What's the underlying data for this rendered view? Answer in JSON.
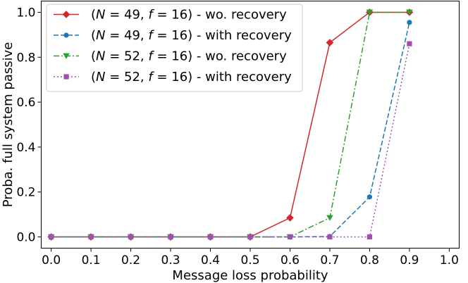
{
  "chart_data": {
    "type": "line",
    "xlabel": "Message loss probability",
    "ylabel": "Proba. full system passive",
    "xlim": [
      -0.025,
      1.025
    ],
    "ylim": [
      -0.05,
      1.05
    ],
    "xticks": [
      0.0,
      0.1,
      0.2,
      0.3,
      0.4,
      0.5,
      0.6,
      0.7,
      0.8,
      0.9,
      1.0
    ],
    "xtick_labels": [
      "0.0",
      "0.1",
      "0.2",
      "0.3",
      "0.4",
      "0.5",
      "0.6",
      "0.7",
      "0.8",
      "0.9",
      "1.0"
    ],
    "yticks": [
      0.0,
      0.2,
      0.4,
      0.6,
      0.8,
      1.0
    ],
    "ytick_labels": [
      "0.0",
      "0.2",
      "0.4",
      "0.6",
      "0.8",
      "1.0"
    ],
    "grid": false,
    "legend_position": "top-left",
    "x": [
      0.0,
      0.1,
      0.2,
      0.3,
      0.4,
      0.5,
      0.6,
      0.7,
      0.8,
      0.9
    ],
    "series": [
      {
        "name": "(N = 49, f = 16) - wo. recovery",
        "label_parts": [
          "(",
          "N",
          " = 49, ",
          "f",
          " = 16) - wo. recovery"
        ],
        "color": "#d62728",
        "dash": "solid",
        "marker": "diamond",
        "values": [
          0.0,
          0.0,
          0.0,
          0.0,
          0.0,
          0.0,
          0.085,
          0.865,
          1.0,
          1.0
        ]
      },
      {
        "name": "(N = 49, f = 16) - with recovery",
        "label_parts": [
          "(",
          "N",
          " = 49, ",
          "f",
          " = 16) - with recovery"
        ],
        "color": "#1f77b4",
        "dash": "dashed",
        "marker": "circle",
        "values": [
          0.0,
          0.0,
          0.0,
          0.0,
          0.0,
          0.0,
          0.0,
          0.002,
          0.178,
          0.955
        ]
      },
      {
        "name": "(N = 52, f = 16) - wo. recovery",
        "label_parts": [
          "(",
          "N",
          " = 52, ",
          "f",
          " = 16) - wo. recovery"
        ],
        "color": "#2ca02c",
        "dash": "dashdot",
        "marker": "triangle-down",
        "values": [
          0.0,
          0.0,
          0.0,
          0.0,
          0.0,
          0.0,
          0.0,
          0.085,
          1.0,
          1.0
        ]
      },
      {
        "name": "(N = 52, f = 16) - with recovery",
        "label_parts": [
          "(",
          "N",
          " = 52, ",
          "f",
          " = 16) - with recovery"
        ],
        "color": "#9f4fb0",
        "dash": "dotted",
        "marker": "square",
        "values": [
          0.0,
          0.0,
          0.0,
          0.0,
          0.0,
          0.0,
          0.0,
          0.0,
          0.0,
          0.86
        ]
      }
    ]
  }
}
